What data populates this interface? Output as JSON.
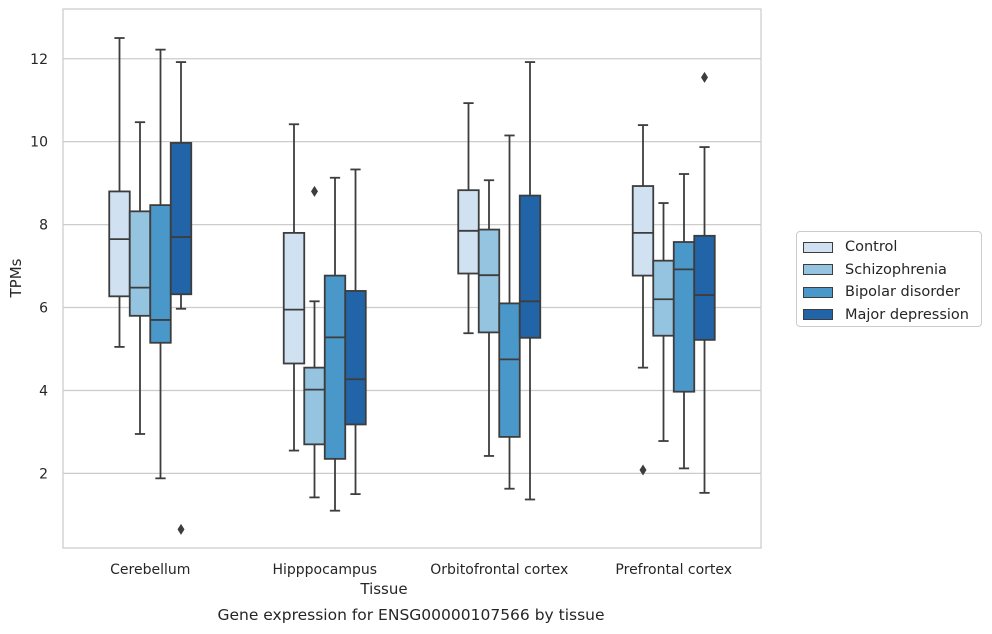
{
  "caption": "Gene expression for ENSG00000107566 by tissue",
  "chart_data": {
    "type": "box",
    "xlabel": "Tissue",
    "ylabel": "TPMs",
    "ylim": [
      0.2,
      13.2
    ],
    "yticks": [
      2,
      4,
      6,
      8,
      10,
      12
    ],
    "grid": true,
    "legend_position": "right, outside",
    "categories": [
      "Cerebellum",
      "Hipppocampus",
      "Orbitofrontal cortex",
      "Prefrontal cortex"
    ],
    "series": [
      {
        "name": "Control",
        "color": "#d0e1f2",
        "boxes": [
          {
            "whisker_low": 5.05,
            "q1": 6.27,
            "median": 7.65,
            "q3": 8.8,
            "whisker_high": 12.5,
            "outliers": []
          },
          {
            "whisker_low": 2.55,
            "q1": 4.65,
            "median": 5.95,
            "q3": 7.8,
            "whisker_high": 10.42,
            "outliers": []
          },
          {
            "whisker_low": 5.38,
            "q1": 6.82,
            "median": 7.85,
            "q3": 8.83,
            "whisker_high": 10.93,
            "outliers": []
          },
          {
            "whisker_low": 4.55,
            "q1": 6.77,
            "median": 7.8,
            "q3": 8.93,
            "whisker_high": 10.4,
            "outliers": [
              2.08
            ]
          }
        ]
      },
      {
        "name": "Schizophrenia",
        "color": "#94c4df",
        "boxes": [
          {
            "whisker_low": 2.95,
            "q1": 5.8,
            "median": 6.48,
            "q3": 8.32,
            "whisker_high": 10.47,
            "outliers": []
          },
          {
            "whisker_low": 1.42,
            "q1": 2.7,
            "median": 4.02,
            "q3": 4.55,
            "whisker_high": 6.15,
            "outliers": [
              8.8
            ]
          },
          {
            "whisker_low": 2.42,
            "q1": 5.4,
            "median": 6.78,
            "q3": 7.88,
            "whisker_high": 9.07,
            "outliers": []
          },
          {
            "whisker_low": 2.78,
            "q1": 5.32,
            "median": 6.2,
            "q3": 7.13,
            "whisker_high": 8.52,
            "outliers": []
          }
        ]
      },
      {
        "name": "Bipolar disorder",
        "color": "#4a98c9",
        "boxes": [
          {
            "whisker_low": 1.88,
            "q1": 5.15,
            "median": 5.7,
            "q3": 8.47,
            "whisker_high": 12.22,
            "outliers": []
          },
          {
            "whisker_low": 1.1,
            "q1": 2.35,
            "median": 5.28,
            "q3": 6.77,
            "whisker_high": 9.13,
            "outliers": []
          },
          {
            "whisker_low": 1.63,
            "q1": 2.88,
            "median": 4.75,
            "q3": 6.1,
            "whisker_high": 10.15,
            "outliers": []
          },
          {
            "whisker_low": 2.12,
            "q1": 3.97,
            "median": 6.92,
            "q3": 7.58,
            "whisker_high": 9.22,
            "outliers": []
          }
        ]
      },
      {
        "name": "Major depression",
        "color": "#2264a8",
        "boxes": [
          {
            "whisker_low": 5.97,
            "q1": 6.32,
            "median": 7.7,
            "q3": 9.97,
            "whisker_high": 11.92,
            "outliers": [
              0.65
            ]
          },
          {
            "whisker_low": 1.5,
            "q1": 3.18,
            "median": 4.27,
            "q3": 6.4,
            "whisker_high": 9.33,
            "outliers": []
          },
          {
            "whisker_low": 1.37,
            "q1": 5.27,
            "median": 6.15,
            "q3": 8.7,
            "whisker_high": 11.92,
            "outliers": []
          },
          {
            "whisker_low": 1.53,
            "q1": 5.22,
            "median": 6.3,
            "q3": 7.73,
            "whisker_high": 9.87,
            "outliers": [
              11.55
            ]
          }
        ]
      }
    ]
  }
}
